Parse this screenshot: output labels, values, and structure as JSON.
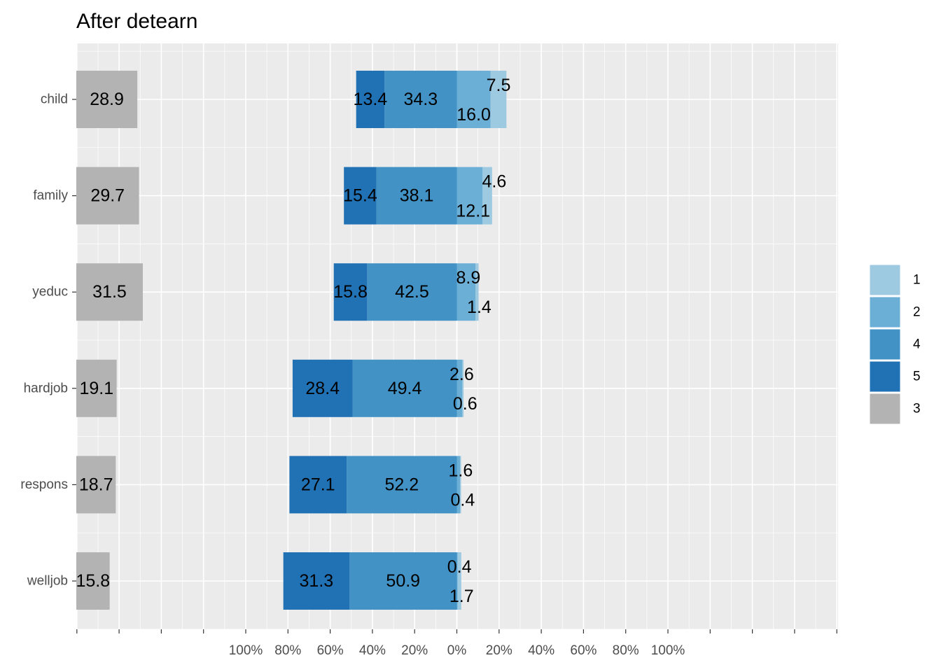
{
  "chart_data": {
    "type": "bar",
    "subtype": "diverging-stacked-likert",
    "title": "After detearn",
    "xlabel": "",
    "ylabel": "",
    "categories": [
      "child",
      "family",
      "yeduc",
      "hardjob",
      "respons",
      "welljob"
    ],
    "xlim_percent": [
      -100,
      100
    ],
    "x_tick_labels": [
      "100%",
      "80%",
      "60%",
      "40%",
      "20%",
      "0%",
      "20%",
      "40%",
      "60%",
      "80%",
      "100%"
    ],
    "neutral_level": "3",
    "series": [
      {
        "name": "1",
        "side": "right",
        "order": 2,
        "color": "#9ecae1",
        "values": [
          7.5,
          4.6,
          1.4,
          0.6,
          0.4,
          1.7
        ]
      },
      {
        "name": "2",
        "side": "right",
        "order": 1,
        "color": "#6baed6",
        "values": [
          16.0,
          12.1,
          8.9,
          2.6,
          1.6,
          0.4
        ]
      },
      {
        "name": "4",
        "side": "left",
        "order": 1,
        "color": "#4292c6",
        "values": [
          34.3,
          38.1,
          42.5,
          49.4,
          52.2,
          50.9
        ]
      },
      {
        "name": "5",
        "side": "left",
        "order": 2,
        "color": "#2171b5",
        "values": [
          13.4,
          15.4,
          15.8,
          28.4,
          27.1,
          31.3
        ]
      },
      {
        "name": "3",
        "side": "neutral",
        "order": 0,
        "color": "#b3b3b3",
        "values": [
          28.9,
          29.7,
          31.5,
          19.1,
          18.7,
          15.8
        ]
      }
    ],
    "legend": {
      "position": "right",
      "entries": [
        {
          "label": "1",
          "color": "#9ecae1"
        },
        {
          "label": "2",
          "color": "#6baed6"
        },
        {
          "label": "4",
          "color": "#4292c6"
        },
        {
          "label": "5",
          "color": "#2171b5"
        },
        {
          "label": "3",
          "color": "#b3b3b3"
        }
      ]
    },
    "grid": true,
    "panel_background": "#ebebeb",
    "gridline_color": "#ffffff"
  }
}
